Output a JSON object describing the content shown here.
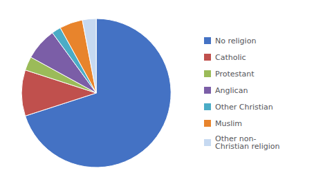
{
  "chart_data": {
    "type": "pie",
    "categories": [
      "No religion",
      "Catholic",
      "Protestant",
      "Anglican",
      "Other Christian",
      "Muslim",
      "Other non-\nChristian religion"
    ],
    "values": [
      70,
      10,
      3,
      7,
      2,
      5,
      3
    ],
    "colors": [
      "#4472C4",
      "#C0504D",
      "#9BBB59",
      "#7B5EA7",
      "#4BACC6",
      "#E8842C",
      "#C6D9F1"
    ],
    "legend": "right"
  }
}
